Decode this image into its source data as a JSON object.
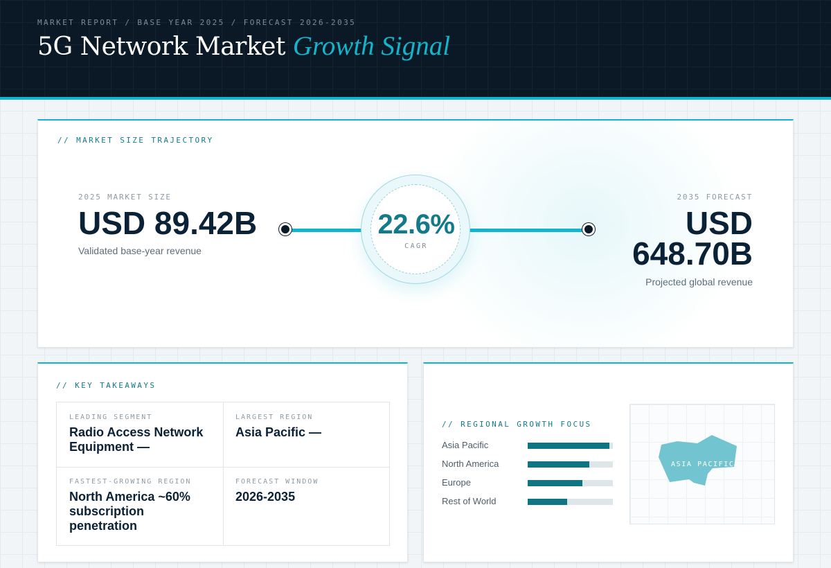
{
  "header": {
    "eyebrow": "MARKET REPORT / BASE YEAR 2025 / FORECAST 2026-2035",
    "title_main": "5G Network Market",
    "title_accent": "Growth Signal"
  },
  "trajectory": {
    "section_label": "// MARKET SIZE TRAJECTORY",
    "base": {
      "label": "2025 MARKET SIZE",
      "value": "USD 89.42B",
      "caption": "Validated base-year revenue"
    },
    "cagr": {
      "value": "22.6%",
      "label": "CAGR"
    },
    "forecast": {
      "label": "2035 FORECAST",
      "value_line1": "USD",
      "value_line2": "648.70B",
      "caption": "Projected global revenue"
    }
  },
  "takeaways": {
    "section_label": "// KEY TAKEAWAYS",
    "items": [
      {
        "label": "LEADING SEGMENT",
        "value": "Radio Access Network Equipment —"
      },
      {
        "label": "LARGEST REGION",
        "value": "Asia Pacific —"
      },
      {
        "label": "FASTEST-GROWING REGION",
        "value": "North America ~60% subscription penetration"
      },
      {
        "label": "FORECAST WINDOW",
        "value": "2026-2035"
      }
    ]
  },
  "regional": {
    "section_label": "// REGIONAL GROWTH FOCUS",
    "bars": [
      {
        "name": "Asia Pacific",
        "level": 0.96
      },
      {
        "name": "North America",
        "level": 0.72
      },
      {
        "name": "Europe",
        "level": 0.64
      },
      {
        "name": "Rest of World",
        "level": 0.46
      }
    ],
    "map_label": "ASIA PACIFIC"
  },
  "colors": {
    "accent": "#12b5cc",
    "accent_dark": "#0f7585",
    "header_bg": "#0b1927",
    "text_dark": "#0b2236",
    "map_shape": "#72c4d1"
  },
  "icons": {
    "start_marker": "dot-marker-icon",
    "end_marker": "dot-marker-icon"
  }
}
